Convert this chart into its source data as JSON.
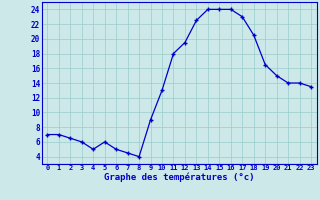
{
  "temperatures": [
    7,
    7,
    6.5,
    6,
    5,
    6,
    5,
    4.5,
    4,
    9,
    13,
    18,
    19.5,
    22.5,
    24,
    24,
    24,
    23,
    20.5,
    16.5,
    15,
    14,
    14,
    13.5
  ],
  "line_color": "#0000cc",
  "marker_color": "#0000cc",
  "bg_color": "#cce8e8",
  "grid_color": "#99cccc",
  "xlabel": "Graphe des températures (°c)",
  "axis_label_color": "#0000cc",
  "tick_label_color": "#0000cc",
  "ylim": [
    3,
    25
  ],
  "yticks": [
    4,
    6,
    8,
    10,
    12,
    14,
    16,
    18,
    20,
    22,
    24
  ],
  "xticks": [
    0,
    1,
    2,
    3,
    4,
    5,
    6,
    7,
    8,
    9,
    10,
    11,
    12,
    13,
    14,
    15,
    16,
    17,
    18,
    19,
    20,
    21,
    22,
    23
  ],
  "xlim": [
    -0.5,
    23.5
  ]
}
